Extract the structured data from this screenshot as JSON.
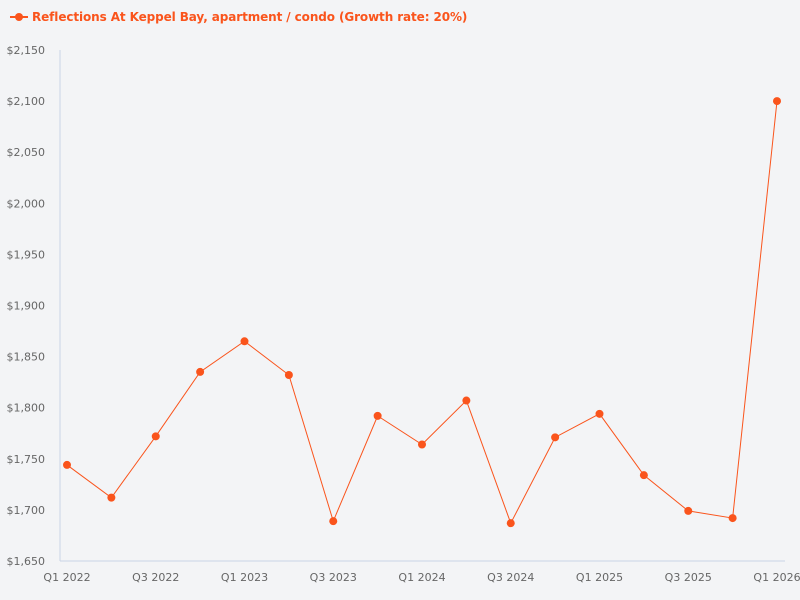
{
  "legend": {
    "label": "Reflections At Keppel Bay, apartment / condo (Growth rate: 20%)",
    "color": "#fa541c"
  },
  "chart_data": {
    "type": "line",
    "title": "",
    "xlabel": "",
    "ylabel": "",
    "legend_position": "top-left",
    "grid": false,
    "ylim": [
      1650,
      2150
    ],
    "yticks": [
      "$1,650",
      "$1,700",
      "$1,750",
      "$1,800",
      "$1,850",
      "$1,900",
      "$1,950",
      "$2,000",
      "$2,050",
      "$2,100",
      "$2,150"
    ],
    "xtick_labels": [
      "Q1 2022",
      "Q3 2022",
      "Q1 2023",
      "Q3 2023",
      "Q1 2024",
      "Q3 2024",
      "Q1 2025",
      "Q3 2025",
      "Q1 2026"
    ],
    "categories": [
      "Q1 2022",
      "Q2 2022",
      "Q3 2022",
      "Q4 2022",
      "Q1 2023",
      "Q2 2023",
      "Q3 2023",
      "Q4 2023",
      "Q1 2024",
      "Q2 2024",
      "Q3 2024",
      "Q4 2024",
      "Q1 2025",
      "Q2 2025",
      "Q3 2025",
      "Q4 2025",
      "Q1 2026"
    ],
    "series": [
      {
        "name": "Reflections At Keppel Bay, apartment / condo (Growth rate: 20%)",
        "color": "#fa541c",
        "values": [
          1744,
          1712,
          1772,
          1835,
          1865,
          1832,
          1689,
          1792,
          1764,
          1807,
          1687,
          1771,
          1794,
          1734,
          1699,
          1692,
          2100
        ]
      }
    ]
  }
}
